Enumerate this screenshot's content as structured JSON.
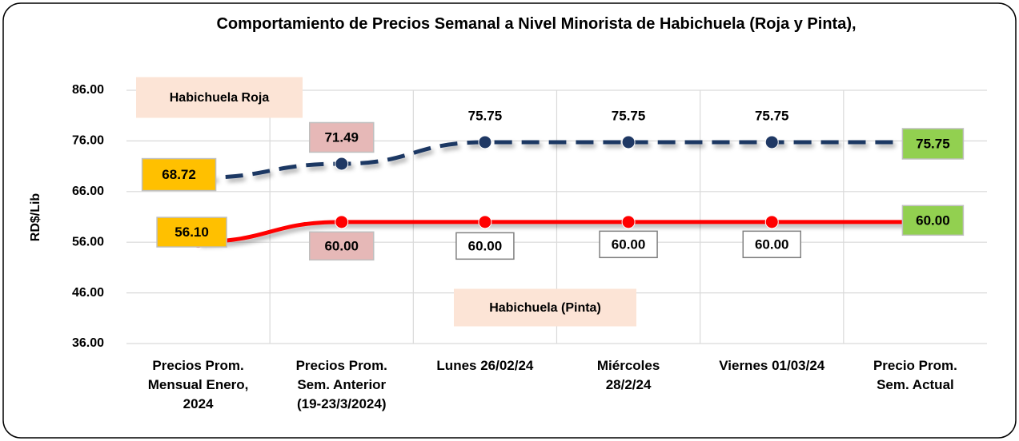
{
  "chart_data": {
    "type": "line",
    "title": "Comportamiento de Precios Semanal a Nivel Minorista de Habichuela (Roja  y Pinta),",
    "y_label": "RD$/Lib",
    "categories": [
      "Precios Prom.\nMensual Enero,\n2024",
      "Precios Prom.\nSem. Anterior\n(19-23/3/2024)",
      "Lunes  26/02/24",
      "Miércoles\n28/2/24",
      "Viernes 01/03/24",
      "Precio Prom.\nSem. Actual"
    ],
    "series": [
      {
        "name": "Habichuela  Roja",
        "color": "#1f3864",
        "dashed": true,
        "values": [
          68.72,
          71.49,
          75.75,
          75.75,
          75.75,
          75.75
        ],
        "value_labels": [
          "68.72",
          "71.49",
          "75.75",
          "75.75",
          "75.75",
          "75.75"
        ],
        "label_colors": [
          "#ffc000",
          "#e6b8b7",
          null,
          null,
          null,
          "#92d050"
        ]
      },
      {
        "name": "Habichuela (Pinta)",
        "color": "#ff0000",
        "dashed": false,
        "values": [
          56.1,
          60,
          60,
          60,
          60,
          60
        ],
        "value_labels": [
          "56.10",
          "60.00",
          "60.00",
          "60.00",
          "60.00",
          "60.00"
        ],
        "label_colors": [
          "#ffc000",
          "#e6b8b7",
          "#ffffff",
          "#ffffff",
          "#ffffff",
          "#92d050"
        ]
      }
    ],
    "ylim": [
      36,
      86
    ],
    "yticks": [
      {
        "value": 36,
        "label": "36.00"
      },
      {
        "value": 46,
        "label": "46.00"
      },
      {
        "value": 56,
        "label": "56.00"
      },
      {
        "value": 66,
        "label": "66.00"
      },
      {
        "value": 76,
        "label": "76.00"
      },
      {
        "value": 86,
        "label": "86.00"
      }
    ],
    "grid": true
  }
}
